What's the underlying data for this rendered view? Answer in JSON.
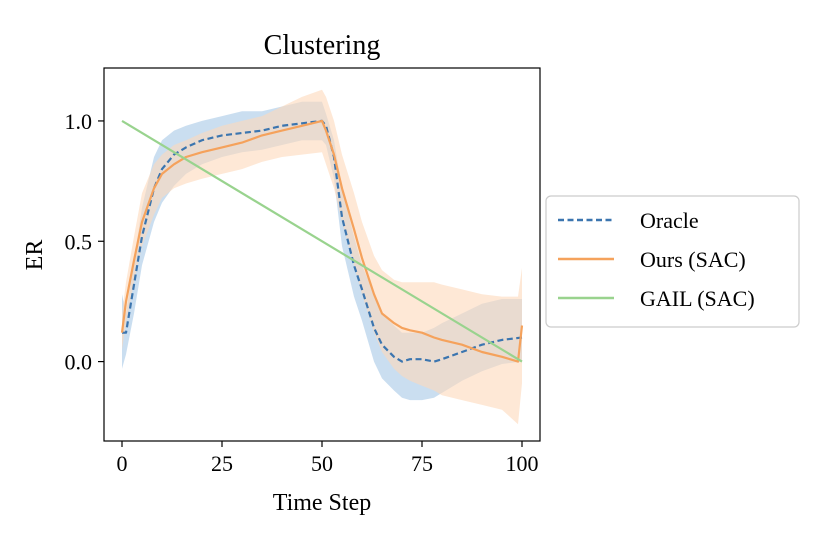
{
  "chart_data": {
    "type": "line",
    "title": "Clustering",
    "xlabel": "Time Step",
    "ylabel": "ER",
    "xlim": [
      -4.5,
      104.5
    ],
    "ylim": [
      -0.33,
      1.22
    ],
    "xticks": [
      0,
      25,
      50,
      75,
      100
    ],
    "xtick_labels": [
      "0",
      "25",
      "50",
      "75",
      "100"
    ],
    "yticks": [
      0.0,
      0.5,
      1.0
    ],
    "ytick_labels": [
      "0.0",
      "0.5",
      "1.0"
    ],
    "grid": false,
    "legend_position": "outside-right",
    "series": [
      {
        "name": "Oracle",
        "color": "#3b75af",
        "dash": "dashed",
        "band_color": "#a6c8e6",
        "x": [
          0,
          1,
          3,
          5,
          8,
          10,
          13,
          16,
          20,
          25,
          30,
          35,
          40,
          45,
          50,
          51,
          53,
          55,
          58,
          60,
          63,
          65,
          68,
          70,
          72,
          75,
          78,
          80,
          85,
          90,
          95,
          100
        ],
        "y": [
          0.12,
          0.12,
          0.32,
          0.52,
          0.72,
          0.8,
          0.86,
          0.89,
          0.92,
          0.94,
          0.95,
          0.96,
          0.98,
          0.99,
          1.0,
          0.98,
          0.85,
          0.6,
          0.4,
          0.3,
          0.14,
          0.07,
          0.02,
          0.0,
          0.01,
          0.01,
          0.0,
          0.01,
          0.04,
          0.07,
          0.09,
          0.1
        ],
        "upper": [
          0.28,
          0.2,
          0.42,
          0.64,
          0.85,
          0.92,
          0.96,
          0.98,
          1.0,
          1.02,
          1.04,
          1.04,
          1.06,
          1.08,
          1.08,
          1.03,
          0.92,
          0.72,
          0.52,
          0.4,
          0.28,
          0.2,
          0.15,
          0.12,
          0.12,
          0.12,
          0.14,
          0.16,
          0.2,
          0.24,
          0.26,
          0.26
        ],
        "lower": [
          -0.03,
          0.03,
          0.2,
          0.4,
          0.58,
          0.66,
          0.73,
          0.78,
          0.82,
          0.85,
          0.87,
          0.88,
          0.9,
          0.92,
          0.92,
          0.9,
          0.76,
          0.48,
          0.27,
          0.17,
          0.0,
          -0.07,
          -0.12,
          -0.15,
          -0.16,
          -0.16,
          -0.15,
          -0.13,
          -0.08,
          -0.04,
          -0.01,
          0.0
        ]
      },
      {
        "name": "Ours (SAC)",
        "color": "#f5a25c",
        "dash": "solid",
        "band_color": "#fdd9bb",
        "x": [
          0,
          1,
          3,
          5,
          8,
          10,
          13,
          16,
          20,
          25,
          30,
          35,
          40,
          45,
          50,
          51,
          53,
          55,
          58,
          60,
          63,
          65,
          68,
          70,
          72,
          75,
          78,
          80,
          85,
          90,
          95,
          99,
          100
        ],
        "y": [
          0.12,
          0.25,
          0.42,
          0.58,
          0.72,
          0.78,
          0.82,
          0.85,
          0.87,
          0.89,
          0.91,
          0.94,
          0.96,
          0.98,
          1.0,
          0.96,
          0.86,
          0.72,
          0.55,
          0.43,
          0.28,
          0.2,
          0.16,
          0.14,
          0.13,
          0.12,
          0.1,
          0.09,
          0.07,
          0.04,
          0.02,
          0.0,
          0.15
        ],
        "upper": [
          0.2,
          0.33,
          0.52,
          0.7,
          0.82,
          0.86,
          0.9,
          0.92,
          0.95,
          0.98,
          1.0,
          1.02,
          1.06,
          1.1,
          1.13,
          1.1,
          1.0,
          0.86,
          0.7,
          0.58,
          0.44,
          0.38,
          0.34,
          0.33,
          0.33,
          0.33,
          0.33,
          0.32,
          0.3,
          0.28,
          0.27,
          0.27,
          0.39
        ],
        "lower": [
          0.05,
          0.16,
          0.33,
          0.48,
          0.61,
          0.68,
          0.72,
          0.74,
          0.76,
          0.78,
          0.8,
          0.83,
          0.85,
          0.86,
          0.87,
          0.82,
          0.72,
          0.58,
          0.4,
          0.28,
          0.12,
          0.04,
          -0.03,
          -0.06,
          -0.08,
          -0.1,
          -0.12,
          -0.14,
          -0.16,
          -0.18,
          -0.2,
          -0.26,
          -0.09
        ]
      },
      {
        "name": "GAIL (SAC)",
        "color": "#99d38e",
        "dash": "solid",
        "band_color": null,
        "x": [
          0,
          100
        ],
        "y": [
          1.0,
          0.0
        ],
        "upper": null,
        "lower": null
      }
    ]
  }
}
